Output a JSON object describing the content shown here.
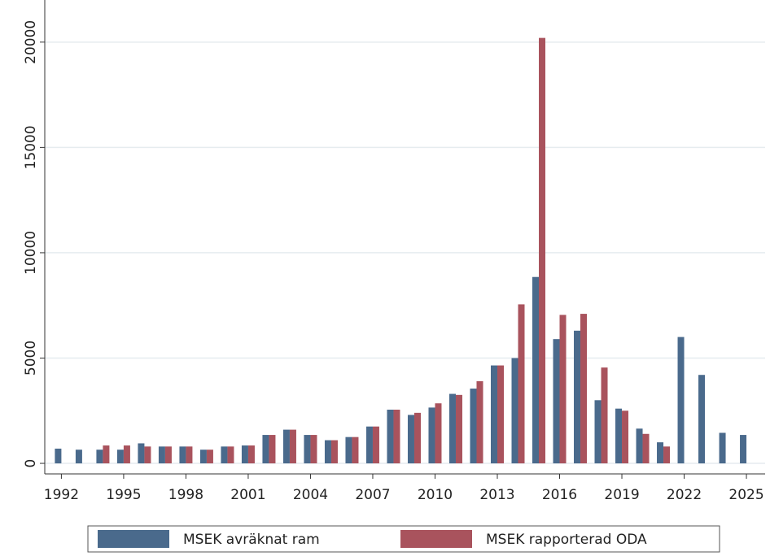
{
  "chart_data": {
    "type": "bar",
    "x": [
      1992,
      1993,
      1994,
      1995,
      1996,
      1997,
      1998,
      1999,
      2000,
      2001,
      2002,
      2003,
      2004,
      2005,
      2006,
      2007,
      2008,
      2009,
      2010,
      2011,
      2012,
      2013,
      2014,
      2015,
      2016,
      2017,
      2018,
      2019,
      2020,
      2021,
      2022,
      2023,
      2024,
      2025
    ],
    "series": [
      {
        "name": "MSEK avräknat ram",
        "color": "#4a6a8c",
        "values": [
          700,
          650,
          650,
          650,
          950,
          800,
          800,
          650,
          800,
          850,
          1350,
          1600,
          1350,
          1100,
          1250,
          1750,
          2550,
          2300,
          2650,
          3300,
          3550,
          4650,
          5000,
          8850,
          5900,
          6300,
          3000,
          2600,
          1650,
          1000,
          6000,
          4200,
          1450,
          1350
        ]
      },
      {
        "name": "MSEK rapporterad ODA",
        "color": "#a9535d",
        "values": [
          null,
          null,
          850,
          850,
          800,
          800,
          800,
          650,
          800,
          850,
          1350,
          1600,
          1350,
          1100,
          1250,
          1750,
          2550,
          2400,
          2850,
          3250,
          3900,
          4650,
          7550,
          20200,
          7050,
          7100,
          4550,
          2500,
          1400,
          800,
          null,
          null,
          null,
          null
        ]
      }
    ],
    "xlim": [
      1991.2,
      2025.9
    ],
    "xticks": [
      1992,
      1995,
      1998,
      2001,
      2004,
      2007,
      2010,
      2013,
      2016,
      2019,
      2022,
      2025
    ],
    "ylim": [
      -500,
      22000
    ],
    "yticks": [
      0,
      5000,
      10000,
      15000,
      20000
    ],
    "grid": true
  }
}
